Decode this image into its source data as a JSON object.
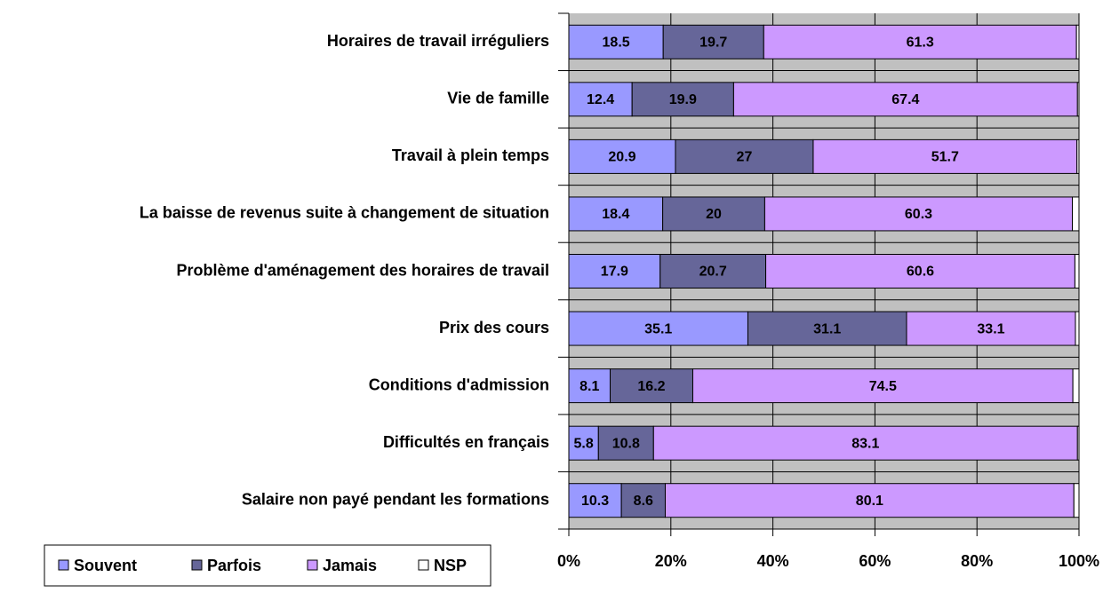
{
  "chart_data": {
    "type": "stacked_bar_horizontal",
    "categories": [
      "Horaires de travail irréguliers",
      "Vie de famille",
      "Travail à plein temps",
      "La baisse de revenus suite à changement de situation",
      "Problème d'aménagement des horaires de travail",
      "Prix des cours",
      "Conditions d'admission",
      "Difficultés en français",
      "Salaire non payé pendant les formations"
    ],
    "series": [
      {
        "name": "Souvent",
        "color": "#9999ff",
        "values": [
          18.5,
          12.4,
          20.9,
          18.4,
          17.9,
          35.1,
          8.1,
          5.8,
          10.3
        ]
      },
      {
        "name": "Parfois",
        "color": "#666699",
        "values": [
          19.7,
          19.9,
          27,
          20,
          20.7,
          31.1,
          16.2,
          10.8,
          8.6
        ]
      },
      {
        "name": "Jamais",
        "color": "#cc99ff",
        "values": [
          61.3,
          67.4,
          51.7,
          60.3,
          60.6,
          33.1,
          74.5,
          83.1,
          80.1
        ]
      },
      {
        "name": "NSP",
        "color": "#ffffff",
        "values": [
          0.5,
          0.3,
          0.4,
          1.3,
          0.8,
          0.7,
          1.2,
          0.3,
          1.0
        ],
        "data_labels": false
      }
    ],
    "xlim": [
      0,
      100
    ],
    "xticks": [
      {
        "value": 0,
        "label": "0%"
      },
      {
        "value": 20,
        "label": "20%"
      },
      {
        "value": 40,
        "label": "40%"
      },
      {
        "value": 60,
        "label": "60%"
      },
      {
        "value": 80,
        "label": "80%"
      },
      {
        "value": 100,
        "label": "100%"
      }
    ],
    "grid": true,
    "legend": "bottom-left",
    "plot_background": "#c0c0c0"
  }
}
